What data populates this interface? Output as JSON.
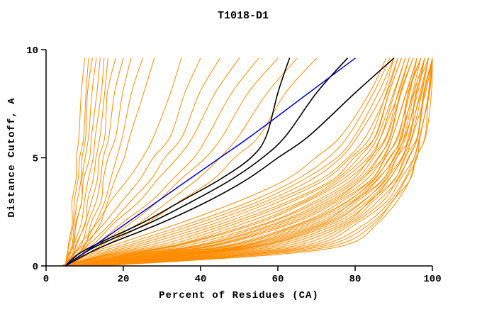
{
  "page": {
    "background": "#ffffff"
  },
  "chart_data": {
    "type": "line",
    "title": "T1018-D1",
    "xlabel": "Percent of Residues (CA)",
    "ylabel": "Distance Cutoff, A",
    "xlim": [
      0,
      100
    ],
    "ylim": [
      0,
      10
    ],
    "xticks": [
      0,
      20,
      40,
      60,
      80,
      100
    ],
    "yticks": [
      0,
      5,
      10
    ],
    "grid": false,
    "legend": "none",
    "colors": {
      "ensemble": "#FF8C00",
      "highlight": "#000000",
      "reference": "#0000CD",
      "axis": "#000000"
    },
    "y_levels": [
      0,
      0.5,
      1,
      2,
      3,
      4,
      5,
      6,
      8,
      9.6
    ],
    "series": [
      {
        "name": "highlight-black-1",
        "color": "#000000",
        "width": 1.6,
        "x": [
          5,
          8,
          13,
          25,
          35,
          45,
          53,
          57,
          60,
          63
        ]
      },
      {
        "name": "highlight-black-2",
        "color": "#000000",
        "width": 1.6,
        "x": [
          5,
          9,
          14,
          27,
          38,
          48,
          56,
          62,
          70,
          78
        ]
      },
      {
        "name": "highlight-black-3",
        "color": "#000000",
        "width": 1.6,
        "x": [
          5,
          10,
          16,
          30,
          42,
          52,
          60,
          68,
          80,
          90
        ]
      },
      {
        "name": "reference-blue",
        "color": "#0000CD",
        "width": 1.5,
        "x": [
          5,
          9,
          13,
          21,
          29,
          37,
          45,
          53,
          68,
          80
        ]
      }
    ],
    "ensemble_series_x": [
      [
        5,
        5.5,
        6,
        6.5,
        7,
        7.5,
        8,
        8.5,
        9,
        10
      ],
      [
        5,
        5.5,
        6,
        7,
        7.5,
        8,
        9,
        9.5,
        10.5,
        11
      ],
      [
        5,
        6,
        6.5,
        7.5,
        8,
        9,
        9.5,
        10,
        11,
        12
      ],
      [
        5,
        6,
        7,
        8,
        9,
        9.5,
        10,
        11,
        12,
        13
      ],
      [
        5,
        6,
        7,
        8,
        9,
        10,
        11,
        12,
        13,
        14
      ],
      [
        5,
        6.5,
        7.5,
        9,
        10,
        11,
        12,
        13,
        14,
        15
      ],
      [
        5,
        7,
        8,
        10,
        11,
        12,
        13,
        14,
        15,
        16
      ],
      [
        5,
        7,
        8,
        10,
        12,
        13,
        14,
        15,
        16,
        18
      ],
      [
        5,
        7,
        9,
        11,
        13,
        14,
        15,
        16,
        18,
        20
      ],
      [
        5,
        8,
        10,
        12,
        14,
        15,
        16,
        18,
        20,
        22
      ],
      [
        5,
        8,
        10,
        13,
        15,
        17,
        18,
        20,
        22,
        25
      ],
      [
        6,
        9,
        11,
        14,
        16,
        18,
        20,
        22,
        25,
        28
      ],
      [
        5,
        7,
        9,
        13,
        17,
        21,
        25,
        28,
        32,
        35
      ],
      [
        5,
        7,
        10,
        15,
        20,
        24,
        28,
        32,
        36,
        40
      ],
      [
        5,
        8,
        11,
        17,
        22,
        27,
        31,
        35,
        40,
        45
      ],
      [
        5,
        8,
        12,
        18,
        24,
        29,
        34,
        38,
        44,
        50
      ],
      [
        5,
        9,
        13,
        20,
        27,
        33,
        38,
        42,
        48,
        55
      ],
      [
        6,
        9,
        14,
        22,
        29,
        35,
        41,
        46,
        52,
        60
      ],
      [
        6,
        10,
        15,
        24,
        32,
        39,
        45,
        50,
        57,
        65
      ],
      [
        6,
        10,
        16,
        26,
        35,
        43,
        49,
        55,
        62,
        70
      ],
      [
        4,
        10,
        18,
        35,
        50,
        62,
        70,
        76,
        84,
        88
      ],
      [
        4,
        11,
        20,
        38,
        53,
        65,
        73,
        78,
        85,
        89
      ],
      [
        4,
        12,
        22,
        40,
        55,
        67,
        75,
        80,
        86,
        90
      ],
      [
        5,
        13,
        24,
        42,
        57,
        69,
        76,
        81,
        87,
        90
      ],
      [
        5,
        14,
        26,
        44,
        59,
        71,
        78,
        83,
        88,
        91
      ],
      [
        5,
        15,
        28,
        46,
        61,
        72,
        79,
        84,
        88,
        91
      ],
      [
        5,
        16,
        30,
        48,
        63,
        74,
        80,
        85,
        89,
        92
      ],
      [
        5,
        17,
        32,
        50,
        64,
        75,
        81,
        85,
        89,
        92
      ],
      [
        5,
        18,
        34,
        52,
        66,
        76,
        82,
        86,
        90,
        93
      ],
      [
        5,
        19,
        35,
        54,
        67,
        77,
        83,
        87,
        90,
        93
      ],
      [
        6,
        20,
        36,
        55,
        68,
        78,
        84,
        87,
        91,
        94
      ],
      [
        6,
        21,
        38,
        57,
        70,
        79,
        84,
        88,
        91,
        94
      ],
      [
        6,
        22,
        40,
        58,
        71,
        80,
        85,
        88,
        92,
        95
      ],
      [
        6,
        23,
        41,
        60,
        72,
        81,
        86,
        89,
        92,
        95
      ],
      [
        6,
        24,
        42,
        61,
        73,
        82,
        86,
        89,
        92,
        95
      ],
      [
        6,
        25,
        44,
        62,
        74,
        82,
        87,
        90,
        93,
        96
      ],
      [
        6,
        26,
        45,
        63,
        75,
        83,
        87,
        90,
        93,
        96
      ],
      [
        7,
        27,
        46,
        64,
        76,
        84,
        88,
        91,
        94,
        96
      ],
      [
        7,
        28,
        48,
        66,
        77,
        84,
        88,
        91,
        94,
        97
      ],
      [
        7,
        29,
        49,
        67,
        78,
        85,
        89,
        92,
        94,
        97
      ],
      [
        7,
        30,
        50,
        68,
        78,
        85,
        89,
        92,
        95,
        97
      ],
      [
        7,
        31,
        52,
        69,
        79,
        86,
        90,
        92,
        95,
        98
      ],
      [
        7,
        32,
        53,
        70,
        80,
        86,
        90,
        93,
        95,
        98
      ],
      [
        7,
        33,
        54,
        71,
        80,
        87,
        90,
        93,
        96,
        98
      ],
      [
        8,
        34,
        55,
        72,
        81,
        87,
        91,
        93,
        96,
        98
      ],
      [
        8,
        35,
        56,
        73,
        82,
        88,
        91,
        94,
        96,
        99
      ],
      [
        8,
        36,
        57,
        74,
        82,
        88,
        92,
        94,
        97,
        99
      ],
      [
        8,
        37,
        58,
        75,
        83,
        89,
        92,
        94,
        97,
        99
      ],
      [
        8,
        38,
        60,
        76,
        84,
        89,
        92,
        95,
        97,
        99
      ],
      [
        9,
        40,
        62,
        77,
        84,
        90,
        93,
        95,
        98,
        100
      ],
      [
        9,
        42,
        64,
        78,
        85,
        90,
        93,
        96,
        98,
        100
      ],
      [
        9,
        44,
        66,
        79,
        86,
        91,
        94,
        96,
        98,
        100
      ],
      [
        10,
        46,
        68,
        80,
        87,
        91,
        94,
        96,
        98,
        100
      ],
      [
        10,
        48,
        70,
        81,
        88,
        92,
        95,
        97,
        99,
        100
      ],
      [
        11,
        50,
        72,
        83,
        89,
        93,
        95,
        97,
        99,
        100
      ],
      [
        12,
        52,
        74,
        84,
        90,
        93,
        96,
        97,
        99,
        100
      ],
      [
        13,
        55,
        76,
        85,
        90,
        94,
        96,
        98,
        99,
        100
      ],
      [
        14,
        58,
        78,
        86,
        91,
        94,
        96,
        98,
        100,
        100
      ]
    ]
  }
}
